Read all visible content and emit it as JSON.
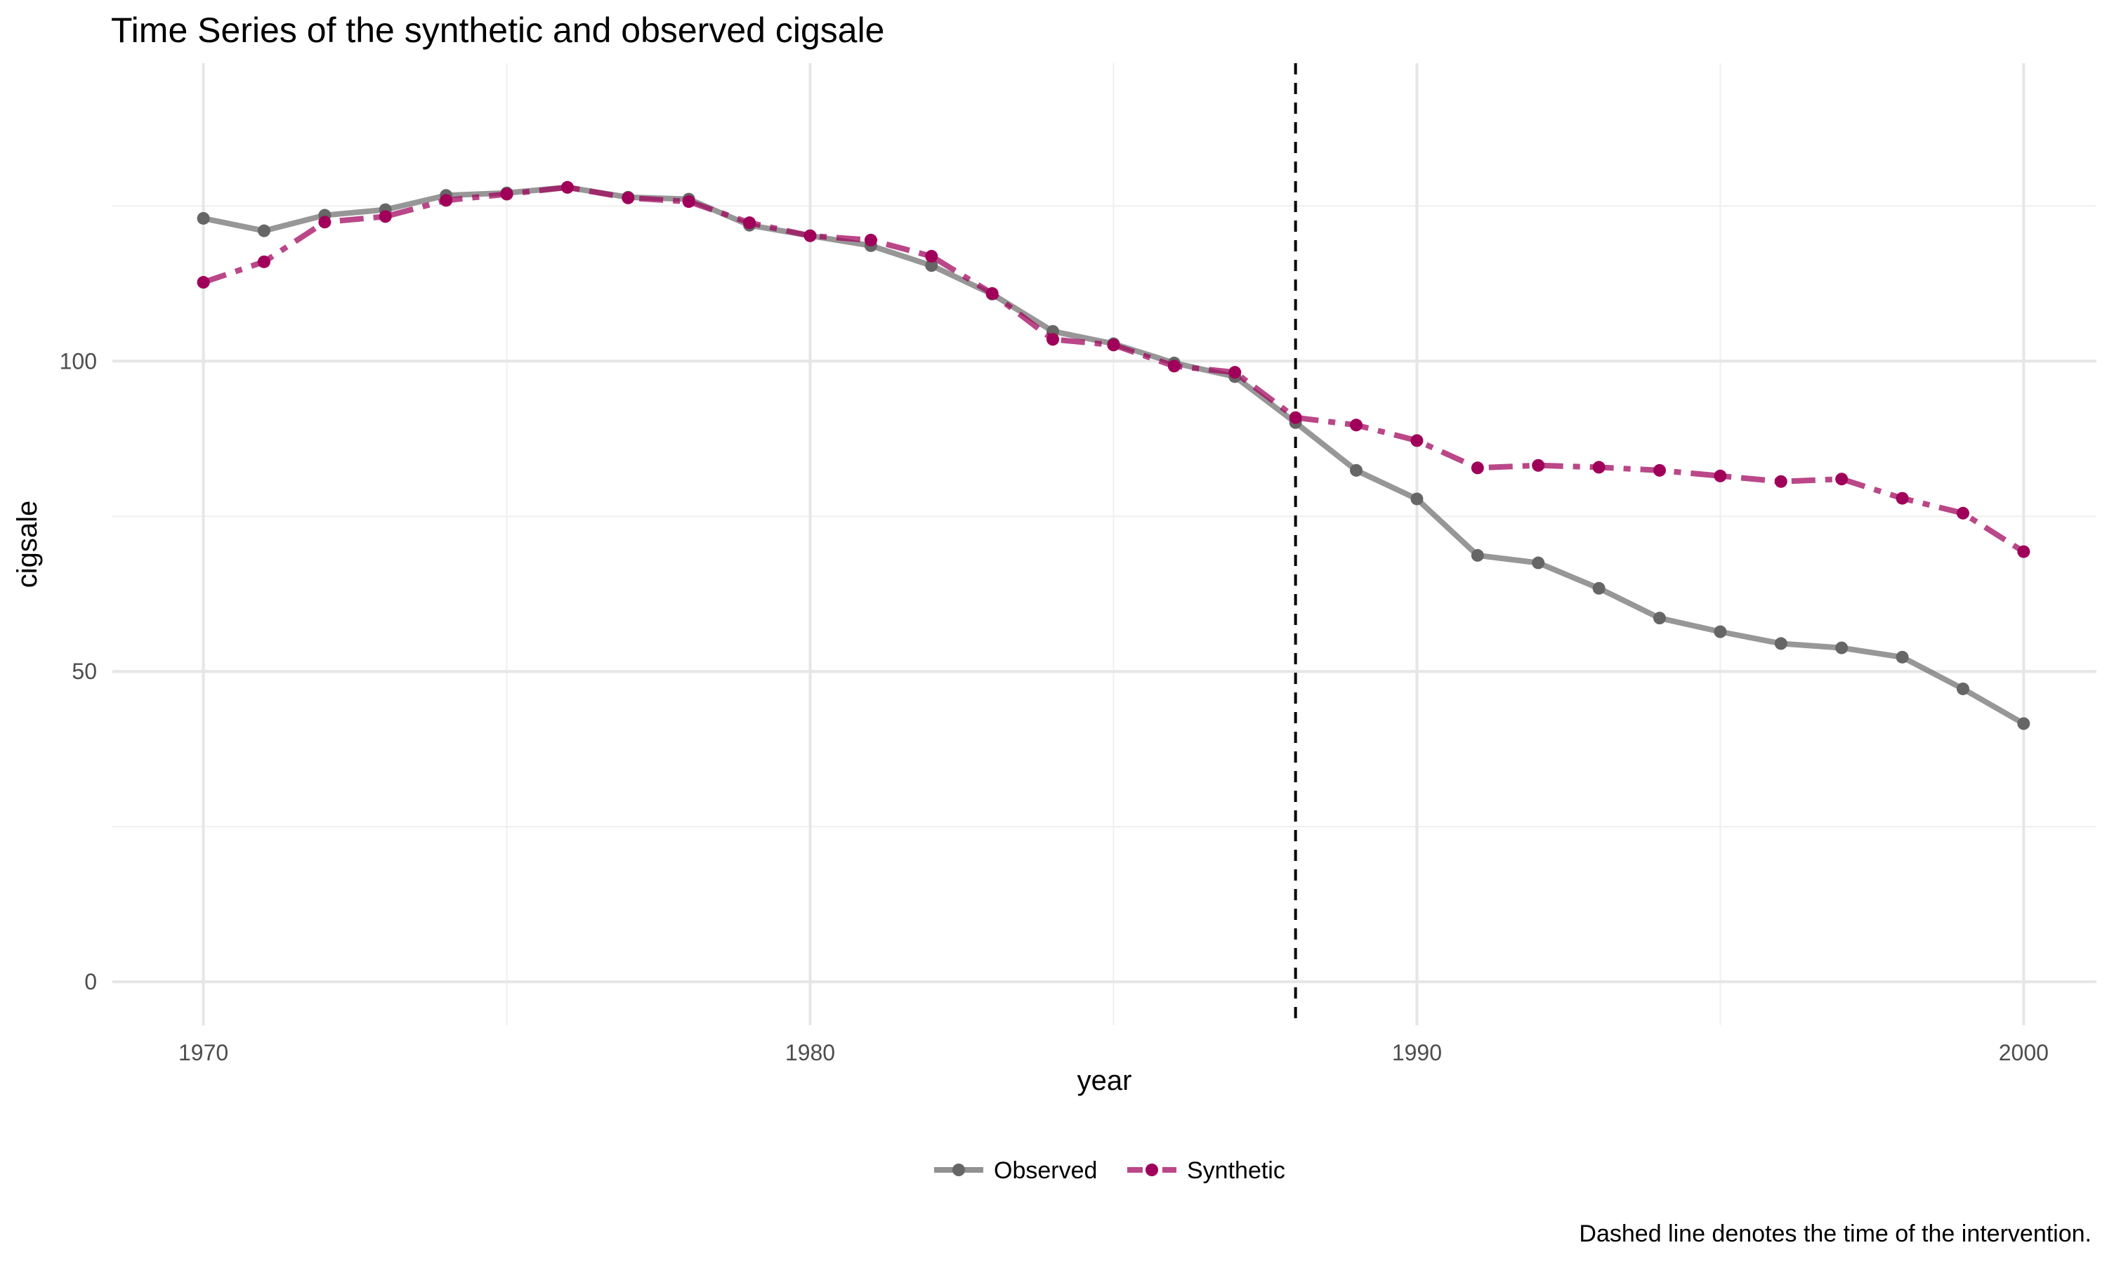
{
  "title": "Time Series of the synthetic and observed cigsale",
  "caption": "Dashed line denotes the time of the intervention.",
  "chart_data": {
    "type": "line",
    "xlabel": "year",
    "ylabel": "cigsale",
    "xlim": [
      1968.5,
      2001.2
    ],
    "ylim": [
      -7,
      148
    ],
    "x_ticks": [
      1970,
      1980,
      1990,
      2000
    ],
    "y_ticks": [
      0,
      50,
      100
    ],
    "grid": true,
    "legend_position": "bottom",
    "intervention_year": 1988,
    "x": [
      1970,
      1971,
      1972,
      1973,
      1974,
      1975,
      1976,
      1977,
      1978,
      1979,
      1980,
      1981,
      1982,
      1983,
      1984,
      1985,
      1986,
      1987,
      1988,
      1989,
      1990,
      1991,
      1992,
      1993,
      1994,
      1995,
      1996,
      1997,
      1998,
      1999,
      2000
    ],
    "series": [
      {
        "name": "Observed",
        "color": "#666666",
        "style": "solid",
        "values": [
          123.0,
          121.0,
          123.5,
          124.4,
          126.7,
          127.1,
          128.0,
          126.4,
          126.1,
          121.9,
          120.2,
          118.6,
          115.4,
          110.8,
          104.8,
          102.8,
          99.7,
          97.5,
          90.1,
          82.4,
          77.8,
          68.7,
          67.5,
          63.4,
          58.6,
          56.4,
          54.5,
          53.8,
          52.3,
          47.2,
          41.6
        ]
      },
      {
        "name": "Synthetic",
        "color": "#a0005a",
        "style": "dashed",
        "values": [
          112.7,
          116.0,
          122.4,
          123.3,
          125.9,
          126.9,
          128.0,
          126.3,
          125.7,
          122.3,
          120.2,
          119.5,
          116.9,
          110.9,
          103.5,
          102.6,
          99.2,
          98.2,
          90.9,
          89.7,
          87.2,
          82.8,
          83.2,
          82.9,
          82.4,
          81.5,
          80.6,
          81.0,
          77.9,
          75.5,
          69.3
        ]
      }
    ]
  }
}
